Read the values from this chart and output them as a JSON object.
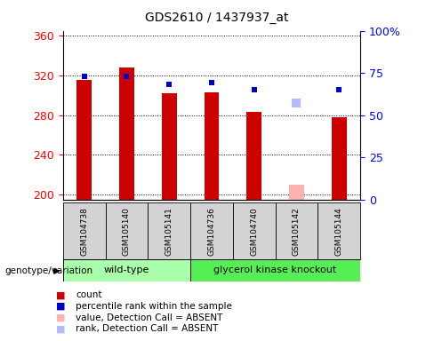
{
  "title": "GDS2610 / 1437937_at",
  "samples": [
    "GSM104738",
    "GSM105140",
    "GSM105141",
    "GSM104736",
    "GSM104740",
    "GSM105142",
    "GSM105144"
  ],
  "red_values": [
    315,
    328,
    302,
    303,
    283,
    null,
    278
  ],
  "blue_rank_values": [
    73,
    73,
    68,
    69,
    65,
    null,
    65
  ],
  "absent_value": [
    null,
    null,
    null,
    null,
    null,
    210,
    null
  ],
  "absent_rank_val": [
    null,
    null,
    null,
    null,
    null,
    57,
    null
  ],
  "groups": [
    "wild-type",
    "wild-type",
    "wild-type",
    "glycerol kinase knockout",
    "glycerol kinase knockout",
    "glycerol kinase knockout",
    "glycerol kinase knockout"
  ],
  "ylim_left": [
    195,
    365
  ],
  "ylim_right": [
    0,
    100
  ],
  "yticks_left": [
    200,
    240,
    280,
    320,
    360
  ],
  "yticks_right": [
    0,
    25,
    50,
    75,
    100
  ],
  "color_red": "#cc0000",
  "color_blue": "#0000cc",
  "color_absent_value": "#ffb0b0",
  "color_absent_rank": "#b8b8ff",
  "color_wt_bg": "#aaffaa",
  "color_ko_bg": "#55ee55",
  "color_sample_bg": "#d3d3d3",
  "bar_bottom": 195,
  "bar_width": 0.35,
  "group_wt_label": "wild-type",
  "group_ko_label": "glycerol kinase knockout",
  "legend_items": [
    {
      "label": "count",
      "color": "#cc0000"
    },
    {
      "label": "percentile rank within the sample",
      "color": "#0000cc"
    },
    {
      "label": "value, Detection Call = ABSENT",
      "color": "#ffb0b0"
    },
    {
      "label": "rank, Detection Call = ABSENT",
      "color": "#b8b8ff"
    }
  ],
  "xlabel_genotype": "genotype/variation"
}
